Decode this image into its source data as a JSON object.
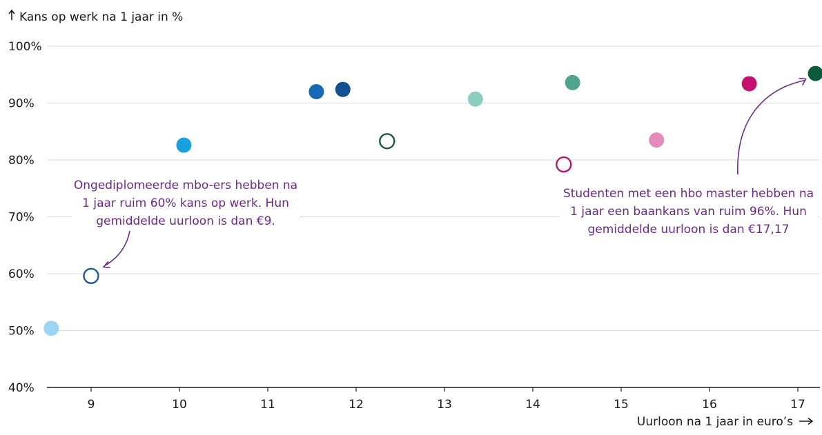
{
  "colors": {
    "annotation": "#6b2a86",
    "grid": "#d9d9d9",
    "axis": "#1a1a1a"
  },
  "annotations": {
    "left": "Ongediplomeerde mbo-ers hebben na 1 jaar ruim 60% kans op werk. Hun gemiddelde uurloon is dan €9.",
    "right": "Studenten met een hbo master hebben na 1 jaar een baankans van ruim 96%. Hun gemiddelde uurloon is dan €17,17"
  },
  "chart_data": {
    "type": "scatter",
    "title": "",
    "ylabel": "Kans op werk na 1 jaar in %",
    "xlabel": "Uurloon na 1 jaar in euro’s",
    "xlim": [
      8.5,
      17.25
    ],
    "ylim": [
      40,
      100
    ],
    "xticks": [
      "9",
      "10",
      "11",
      "12",
      "13",
      "14",
      "15",
      "16",
      "17"
    ],
    "yticks": [
      "40%",
      "50%",
      "60%",
      "70%",
      "80%",
      "90%",
      "100%"
    ],
    "grid": true,
    "legend": "none",
    "points": [
      {
        "x": 8.55,
        "y": 50.4,
        "color": "#9dd3f3",
        "filled": true
      },
      {
        "x": 9.0,
        "y": 59.6,
        "color": "#1d5a96",
        "filled": false
      },
      {
        "x": 10.05,
        "y": 82.6,
        "color": "#1aa0dc",
        "filled": true
      },
      {
        "x": 11.55,
        "y": 92.0,
        "color": "#1669b4",
        "filled": true
      },
      {
        "x": 11.85,
        "y": 92.4,
        "color": "#114f8e",
        "filled": true
      },
      {
        "x": 12.35,
        "y": 83.3,
        "color": "#155a46",
        "filled": false
      },
      {
        "x": 13.35,
        "y": 90.7,
        "color": "#8ccdbf",
        "filled": true
      },
      {
        "x": 14.35,
        "y": 79.2,
        "color": "#b3166e",
        "filled": false
      },
      {
        "x": 14.45,
        "y": 93.6,
        "color": "#52a38d",
        "filled": true
      },
      {
        "x": 15.4,
        "y": 83.5,
        "color": "#e38bbd",
        "filled": true
      },
      {
        "x": 16.45,
        "y": 93.4,
        "color": "#c4116f",
        "filled": true
      },
      {
        "x": 17.2,
        "y": 95.2,
        "color": "#0b5a3c",
        "filled": true
      }
    ]
  }
}
